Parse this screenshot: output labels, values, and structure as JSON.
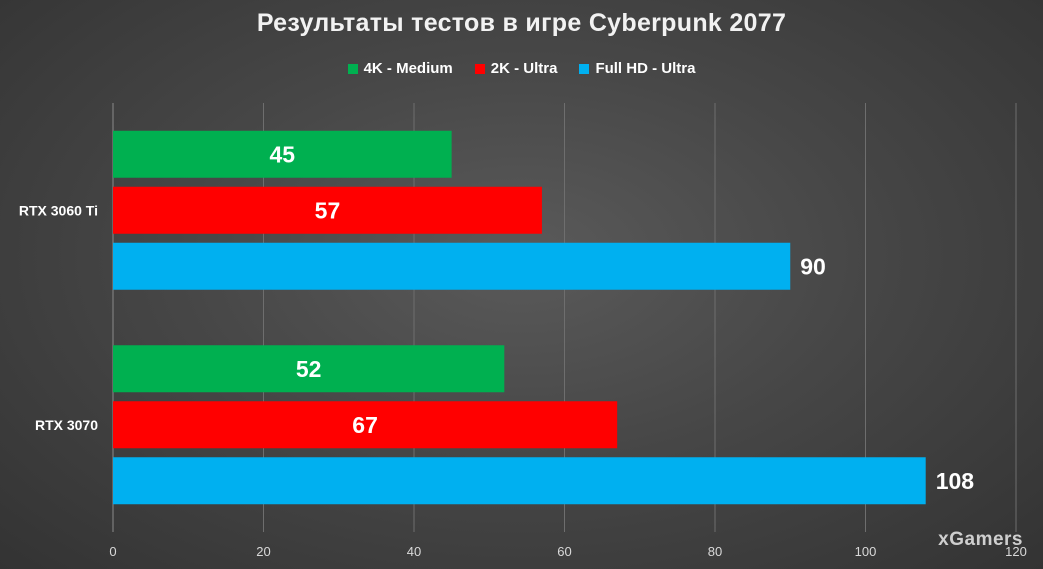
{
  "chart_data": {
    "type": "bar",
    "orientation": "horizontal",
    "title": "Результаты тестов в игре Cyberpunk 2077",
    "categories": [
      "RTX 3060 Ti",
      "RTX 3070"
    ],
    "series": [
      {
        "name": "4K - Medium",
        "color": "#00b050",
        "values": [
          45,
          52
        ]
      },
      {
        "name": "2K - Ultra",
        "color": "#ff0000",
        "values": [
          57,
          67
        ]
      },
      {
        "name": "Full HD - Ultra",
        "color": "#00b0f0",
        "values": [
          90,
          108
        ]
      }
    ],
    "xlim": [
      0,
      120
    ],
    "ticks": [
      "0",
      "20",
      "40",
      "60",
      "80",
      "100",
      "120"
    ],
    "grid": true,
    "legend_position": "top"
  },
  "watermark": "xGamers"
}
